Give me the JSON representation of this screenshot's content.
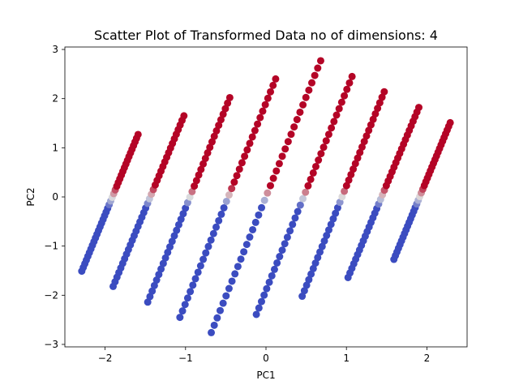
{
  "chart_data": {
    "type": "scatter",
    "title": "Scatter Plot of Transformed Data no of dimensions: 4",
    "xlabel": "PC1",
    "ylabel": "PC2",
    "xlim": [
      -2.5,
      2.5
    ],
    "ylim": [
      -3.05,
      3.05
    ],
    "xticks": [
      -2,
      -1,
      0,
      1,
      2
    ],
    "yticks": [
      -3,
      -2,
      -1,
      0,
      1,
      2,
      3
    ],
    "x_tick_labels": [
      "−2",
      "−1",
      "0",
      "1",
      "2"
    ],
    "y_tick_labels": [
      "−3",
      "−2",
      "−1",
      "0",
      "1",
      "2",
      "3"
    ],
    "grid": false,
    "legend": "none",
    "colormap": "coolwarm",
    "colors": {
      "high": "#b40426",
      "low": "#3b4cc0",
      "mid": "#dddddd"
    },
    "lines": [
      {
        "x_start": -2.29,
        "y_start": -1.51,
        "x_end": -1.59,
        "y_end": 1.27
      },
      {
        "x_start": -1.9,
        "y_start": -1.82,
        "x_end": -1.02,
        "y_end": 1.65
      },
      {
        "x_start": -1.47,
        "y_start": -2.14,
        "x_end": -0.45,
        "y_end": 2.02
      },
      {
        "x_start": -1.07,
        "y_start": -2.45,
        "x_end": 0.12,
        "y_end": 2.4
      },
      {
        "x_start": -0.68,
        "y_start": -2.76,
        "x_end": 0.68,
        "y_end": 2.77
      },
      {
        "x_start": -0.12,
        "y_start": -2.39,
        "x_end": 1.07,
        "y_end": 2.45
      },
      {
        "x_start": 0.45,
        "y_start": -2.02,
        "x_end": 1.47,
        "y_end": 2.14
      },
      {
        "x_start": 1.02,
        "y_start": -1.64,
        "x_end": 1.9,
        "y_end": 1.82
      },
      {
        "x_start": 1.59,
        "y_start": -1.27,
        "x_end": 2.29,
        "y_end": 1.51
      }
    ],
    "points_per_line": 38
  }
}
